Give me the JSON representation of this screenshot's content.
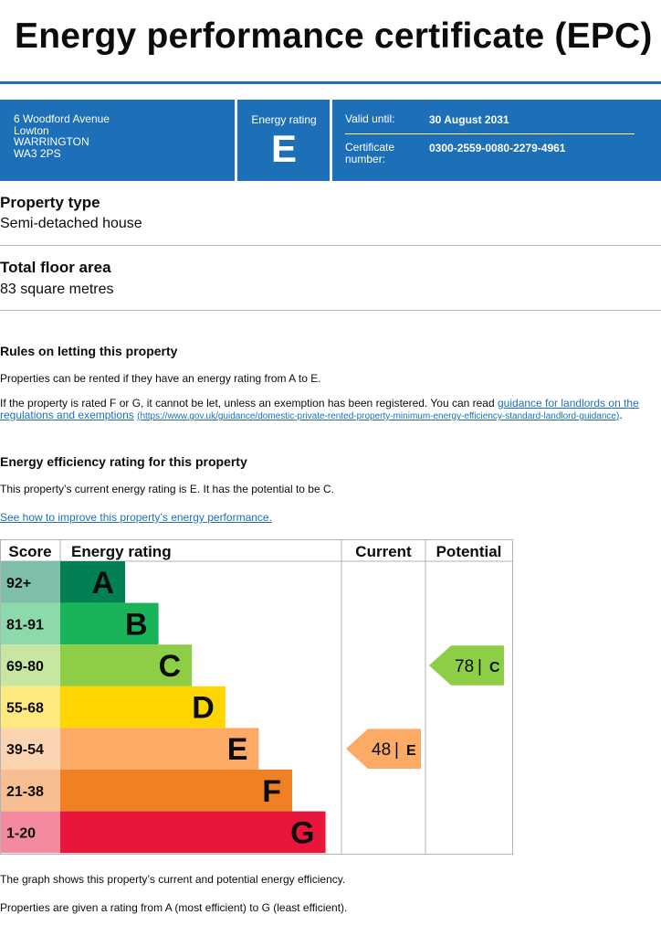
{
  "title": "Energy performance certificate (EPC)",
  "address": [
    "6 Woodford Avenue",
    "Lowton",
    "WARRINGTON",
    "WA3 2PS"
  ],
  "energy_rating": {
    "label": "Energy rating",
    "value": "E"
  },
  "valid_until": {
    "label": "Valid until:",
    "value": "30 August 2031"
  },
  "certificate": {
    "label_line1": "Certificate",
    "label_line2": "number:",
    "value": "0300-2559-0080-2279-4961"
  },
  "property_type": {
    "heading": "Property type",
    "value": "Semi-detached house"
  },
  "floor_area": {
    "heading": "Total floor area",
    "value": "83 square metres"
  },
  "letting": {
    "heading": "Rules on letting this property",
    "p1": "Properties can be rented if they have an energy rating from A to E.",
    "p2_prefix": "If the property is rated F or G, it cannot be let, unless an exemption has been registered. You can read ",
    "p2_link_line1": "guidance for landlords on the",
    "p2_link_line2": "regulations and exemptions",
    "p2_url": "(https://www.gov.uk/guidance/domestic-private-rented-property-minimum-energy-efficiency-standard-landlord-guidance)",
    "p2_suffix": "."
  },
  "efficiency": {
    "heading": "Energy efficiency rating for this property",
    "p1": "This property’s current energy rating is E. It has the potential to be C.",
    "link": "See how to improve this property’s energy performance."
  },
  "chart_data": {
    "type": "table",
    "headers": {
      "score": "Score",
      "rating": "Energy rating",
      "current": "Current",
      "potential": "Potential"
    },
    "bands": [
      {
        "score": "92+",
        "letter": "A",
        "color": "#008054",
        "score_bg": "#7fbfa9"
      },
      {
        "score": "81-91",
        "letter": "B",
        "color": "#19b459",
        "score_bg": "#8cd9ac"
      },
      {
        "score": "69-80",
        "letter": "C",
        "color": "#8dce46",
        "score_bg": "#c6e6a2"
      },
      {
        "score": "55-68",
        "letter": "D",
        "color": "#ffd500",
        "score_bg": "#ffea7f"
      },
      {
        "score": "39-54",
        "letter": "E",
        "color": "#fcaa65",
        "score_bg": "#fdd4b2"
      },
      {
        "score": "21-38",
        "letter": "F",
        "color": "#ef8023",
        "score_bg": "#f7bf91"
      },
      {
        "score": "1-20",
        "letter": "G",
        "color": "#e9153b",
        "score_bg": "#f48a9d"
      }
    ],
    "current": {
      "value": 48,
      "letter": "E",
      "separator": "|",
      "color": "#fcaa65"
    },
    "potential": {
      "value": 78,
      "letter": "C",
      "separator": "|",
      "color": "#8dce46"
    }
  },
  "footer": {
    "p1": "The graph shows this property’s current and potential energy efficiency.",
    "p2": "Properties are given a rating from A (most efficient) to G (least efficient)."
  }
}
